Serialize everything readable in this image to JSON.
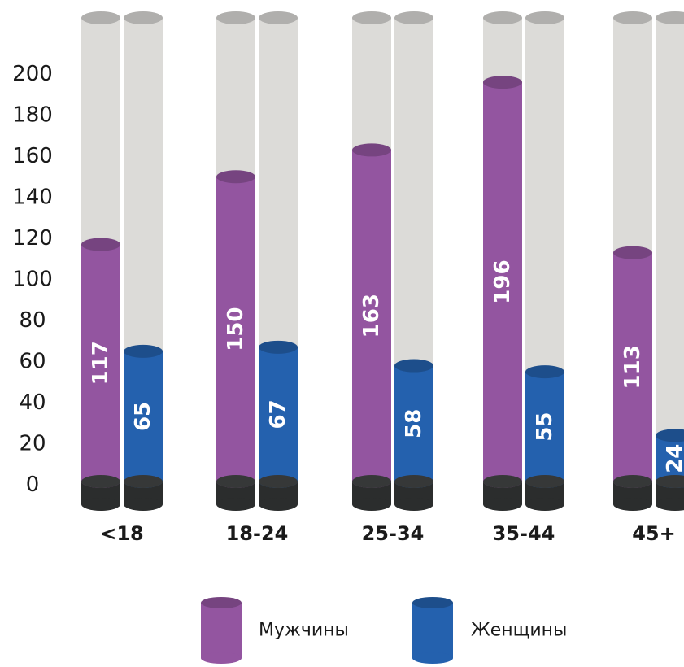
{
  "chart_data": {
    "type": "bar",
    "categories": [
      "<18",
      "18-24",
      "25-34",
      "35-44",
      "45+"
    ],
    "series": [
      {
        "name": "Мужчины",
        "values": [
          117,
          150,
          163,
          196,
          113
        ],
        "color": "#9355a0"
      },
      {
        "name": "Женщины",
        "values": [
          65,
          67,
          58,
          55,
          24
        ],
        "color": "#2461ae"
      }
    ],
    "ylim": [
      0,
      200
    ],
    "yticks": [
      0,
      20,
      40,
      60,
      80,
      100,
      120,
      140,
      160,
      180,
      200
    ],
    "track_color": "#dcdbd8",
    "base_color": "#2b2d2d",
    "legend": {
      "position": "bottom"
    },
    "grid": false
  }
}
